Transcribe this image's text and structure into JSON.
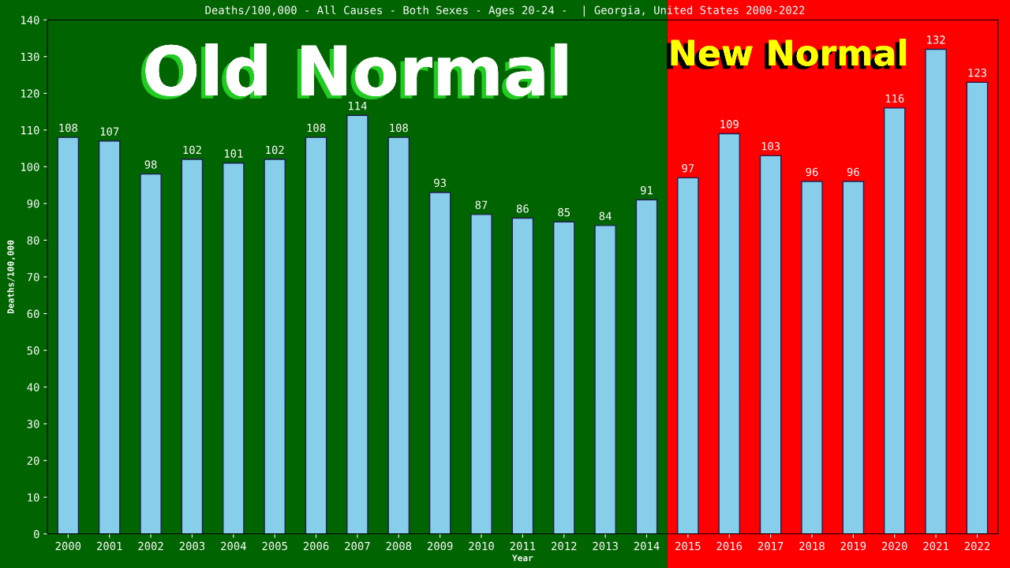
{
  "chart_data": {
    "type": "bar",
    "title": "Deaths/100,000 - All Causes - Both Sexes - Ages 20-24 -  | Georgia, United States 2000-2022",
    "xlabel": "Year",
    "ylabel": "Deaths/100,000",
    "categories": [
      "2000",
      "2001",
      "2002",
      "2003",
      "2004",
      "2005",
      "2006",
      "2007",
      "2008",
      "2009",
      "2010",
      "2011",
      "2012",
      "2013",
      "2014",
      "2015",
      "2016",
      "2017",
      "2018",
      "2019",
      "2020",
      "2021",
      "2022"
    ],
    "values": [
      108,
      107,
      98,
      102,
      101,
      102,
      108,
      114,
      108,
      93,
      87,
      86,
      85,
      84,
      91,
      97,
      109,
      103,
      96,
      96,
      116,
      132,
      123
    ],
    "color": "#87ceeb",
    "ylim": [
      0,
      140
    ],
    "yticks": [
      0,
      10,
      20,
      30,
      40,
      50,
      60,
      70,
      80,
      90,
      100,
      110,
      120,
      130,
      140
    ],
    "grid": false,
    "data_labels": true,
    "bands": [
      {
        "axis": "x",
        "from": "2000",
        "to": "2014",
        "label": "Old Normal",
        "color": "#006400"
      },
      {
        "axis": "x",
        "from": "2015",
        "to": "2022",
        "label": "New Normal",
        "color": "#ff0000"
      }
    ]
  }
}
